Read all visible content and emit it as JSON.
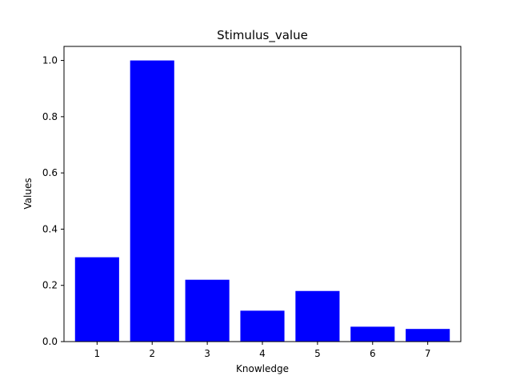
{
  "chart_data": {
    "type": "bar",
    "title": "Stimulus_value",
    "xlabel": "Knowledge",
    "ylabel": "Values",
    "categories": [
      "1",
      "2",
      "3",
      "4",
      "5",
      "6",
      "7"
    ],
    "values": [
      0.3,
      1.0,
      0.22,
      0.11,
      0.18,
      0.053,
      0.045
    ],
    "ylim": [
      0,
      1.05
    ],
    "yticks": [
      "0.0",
      "0.2",
      "0.4",
      "0.6",
      "0.8",
      "1.0"
    ],
    "bar_color": "#0000ff",
    "grid": false,
    "legend": false
  }
}
